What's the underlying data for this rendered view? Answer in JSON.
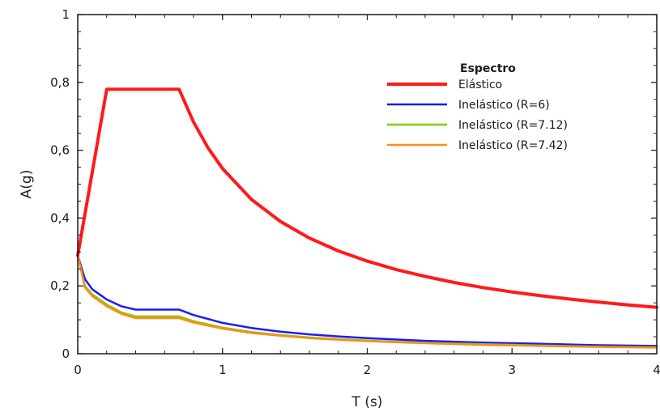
{
  "chart_data": {
    "type": "line",
    "title": "",
    "xlabel": "T (s)",
    "ylabel": "A(g)",
    "xlim": [
      0,
      4
    ],
    "ylim": [
      0,
      1
    ],
    "x_ticks": [
      0,
      1,
      2,
      3,
      4
    ],
    "x_tick_labels": [
      "0",
      "1",
      "2",
      "3",
      "4"
    ],
    "y_ticks": [
      0,
      0.2,
      0.4,
      0.6,
      0.8,
      1
    ],
    "y_tick_labels": [
      "0",
      "0,2",
      "0,4",
      "0,6",
      "0,8",
      "1"
    ],
    "grid": false,
    "legend": {
      "title": "Espectro",
      "position": "top-right"
    },
    "series": [
      {
        "name": "Elástico",
        "color": "#ff1a1a",
        "points": [
          [
            0,
            0.29
          ],
          [
            0.2,
            0.78
          ],
          [
            0.7,
            0.78
          ],
          [
            0.8,
            0.683
          ],
          [
            0.9,
            0.607
          ],
          [
            1.0,
            0.546
          ],
          [
            1.2,
            0.455
          ],
          [
            1.4,
            0.39
          ],
          [
            1.6,
            0.341
          ],
          [
            1.8,
            0.303
          ],
          [
            2.0,
            0.273
          ],
          [
            2.2,
            0.248
          ],
          [
            2.4,
            0.228
          ],
          [
            2.6,
            0.21
          ],
          [
            2.8,
            0.195
          ],
          [
            3.0,
            0.182
          ],
          [
            3.2,
            0.171
          ],
          [
            3.4,
            0.161
          ],
          [
            3.6,
            0.152
          ],
          [
            3.8,
            0.144
          ],
          [
            4.0,
            0.137
          ]
        ]
      },
      {
        "name": "Inelástico (R=6)",
        "color": "#1a1aff",
        "points": [
          [
            0,
            0.29
          ],
          [
            0.05,
            0.22
          ],
          [
            0.1,
            0.19
          ],
          [
            0.2,
            0.16
          ],
          [
            0.3,
            0.14
          ],
          [
            0.4,
            0.13
          ],
          [
            0.7,
            0.13
          ],
          [
            0.8,
            0.114
          ],
          [
            1.0,
            0.091
          ],
          [
            1.2,
            0.076
          ],
          [
            1.4,
            0.065
          ],
          [
            1.6,
            0.057
          ],
          [
            1.8,
            0.051
          ],
          [
            2.0,
            0.046
          ],
          [
            2.4,
            0.038
          ],
          [
            2.8,
            0.033
          ],
          [
            3.2,
            0.029
          ],
          [
            3.6,
            0.025
          ],
          [
            4.0,
            0.023
          ]
        ]
      },
      {
        "name": "Inelástico (R=7.12)",
        "color": "#88cc00",
        "points": [
          [
            0,
            0.29
          ],
          [
            0.05,
            0.2
          ],
          [
            0.1,
            0.175
          ],
          [
            0.2,
            0.145
          ],
          [
            0.3,
            0.122
          ],
          [
            0.4,
            0.11
          ],
          [
            0.7,
            0.11
          ],
          [
            0.8,
            0.096
          ],
          [
            1.0,
            0.077
          ],
          [
            1.2,
            0.064
          ],
          [
            1.4,
            0.055
          ],
          [
            1.6,
            0.048
          ],
          [
            1.8,
            0.043
          ],
          [
            2.0,
            0.039
          ],
          [
            2.4,
            0.032
          ],
          [
            2.8,
            0.028
          ],
          [
            3.2,
            0.024
          ],
          [
            3.6,
            0.021
          ],
          [
            4.0,
            0.019
          ]
        ]
      },
      {
        "name": "Inelástico (R=7.42)",
        "color": "#ff8c1a",
        "points": [
          [
            0,
            0.29
          ],
          [
            0.05,
            0.195
          ],
          [
            0.1,
            0.17
          ],
          [
            0.2,
            0.14
          ],
          [
            0.3,
            0.118
          ],
          [
            0.4,
            0.105
          ],
          [
            0.7,
            0.105
          ],
          [
            0.8,
            0.092
          ],
          [
            1.0,
            0.074
          ],
          [
            1.2,
            0.061
          ],
          [
            1.4,
            0.053
          ],
          [
            1.6,
            0.046
          ],
          [
            1.8,
            0.041
          ],
          [
            2.0,
            0.037
          ],
          [
            2.4,
            0.031
          ],
          [
            2.8,
            0.026
          ],
          [
            3.2,
            0.023
          ],
          [
            3.6,
            0.02
          ],
          [
            4.0,
            0.018
          ]
        ]
      }
    ]
  }
}
